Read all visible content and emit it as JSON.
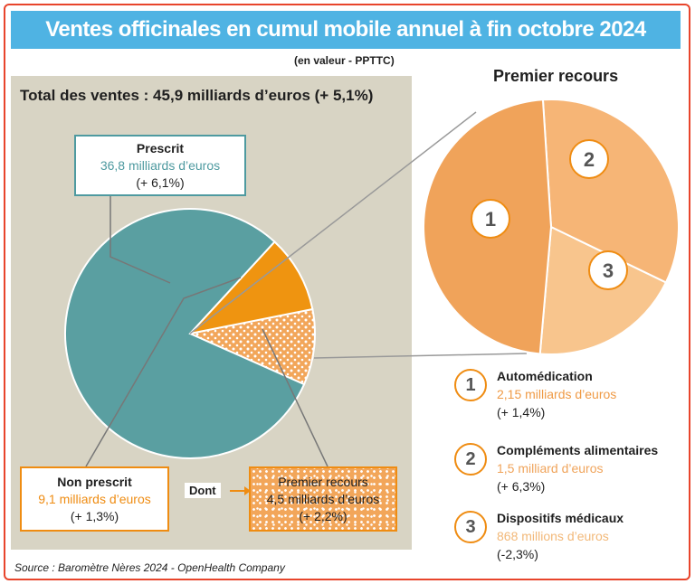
{
  "title": "Ventes officinales en cumul mobile annuel à fin octobre 2024",
  "subtitle": "(en valeur - PPTTC)",
  "total": "Total des ventes : 45,9 milliards d’euros (+ 5,1%)",
  "prescrit": {
    "label": "Prescrit",
    "value": "36,8 milliards d’euros",
    "change": "(+ 6,1%)"
  },
  "non_prescrit": {
    "label": "Non prescrit",
    "value": "9,1 milliards d’euros",
    "change": "(+ 1,3%)"
  },
  "dont": "Dont",
  "premier_recours_box": {
    "label": "Premier recours",
    "value": "4,5 milliards d’euros",
    "change": "(+ 2,2%)"
  },
  "premier_recours_title": "Premier recours",
  "legend": [
    {
      "num": "1",
      "label": "Automédication",
      "value": "2,15 milliards d’euros",
      "change": "(+ 1,4%)"
    },
    {
      "num": "2",
      "label": "Compléments alimentaires",
      "value": "1,5 milliard d’euros",
      "change": "(+ 6,3%)"
    },
    {
      "num": "3",
      "label": "Dispositifs médicaux",
      "value": "868 millions d’euros",
      "change": "(-2,3%)"
    }
  ],
  "source": "Source : Baromètre Nères 2024 - OpenHealth Company",
  "colors": {
    "prescrit": "#5a9fa1",
    "non_prescrit": "#ef9410",
    "premier_recours": "#f2a65a",
    "auto": "#f0a35a",
    "complements": "#f6b576",
    "dispositifs": "#f8c58d"
  },
  "chart_data": [
    {
      "type": "pie",
      "title": "Total des ventes : 45,9 milliards d’euros (+ 5,1%)",
      "slices": [
        {
          "label": "Prescrit",
          "value": 36.8
        },
        {
          "label": "Non prescrit (hors premier recours)",
          "value": 4.6
        },
        {
          "label": "Premier recours",
          "value": 4.5
        }
      ]
    },
    {
      "type": "pie",
      "title": "Premier recours",
      "slices": [
        {
          "label": "1",
          "value": 2.15
        },
        {
          "label": "2",
          "value": 1.5
        },
        {
          "label": "3",
          "value": 0.868
        }
      ]
    }
  ]
}
